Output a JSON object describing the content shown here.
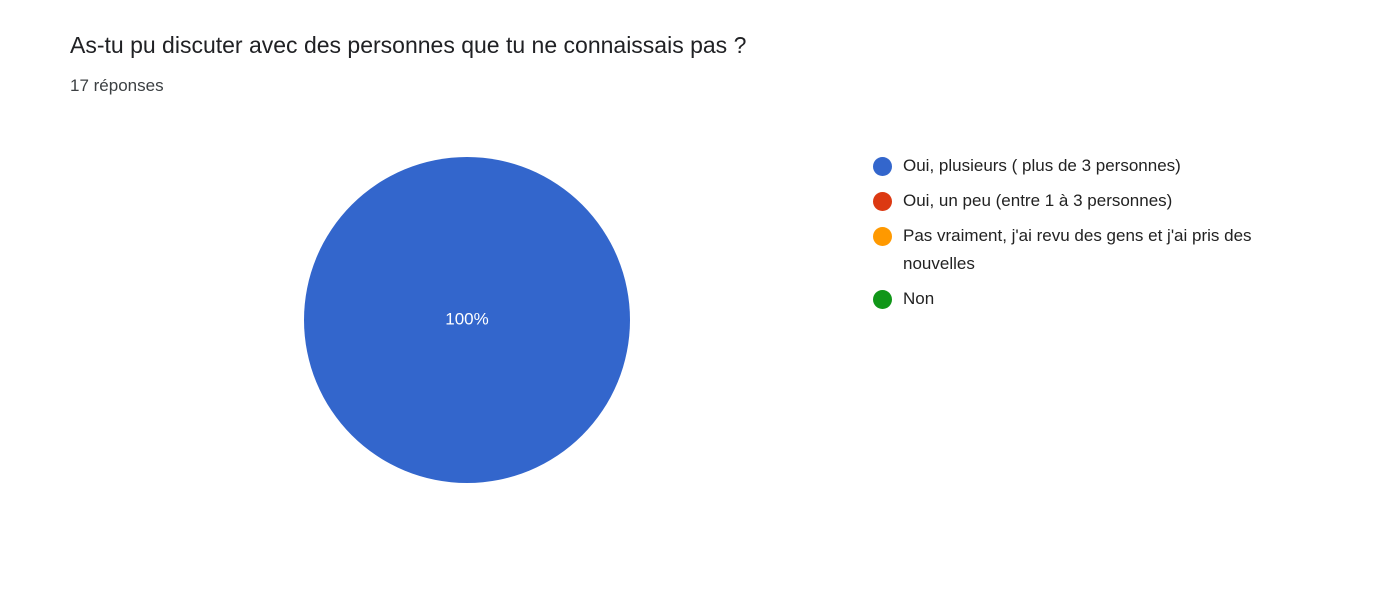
{
  "chart_data": {
    "type": "pie",
    "title": "As-tu pu discuter avec des personnes que tu ne connaissais pas ?",
    "subtitle": "17 réponses",
    "categories": [
      "Oui, plusieurs ( plus de 3 personnes)",
      "Oui, un peu (entre 1 à 3 personnes)",
      "Pas vraiment, j'ai revu des gens et j'ai pris des nouvelles",
      "Non"
    ],
    "values": [
      100,
      0,
      0,
      0
    ],
    "value_labels": [
      "100%",
      null,
      null,
      null
    ],
    "colors": [
      "#3366cc",
      "#dc3912",
      "#ff9900",
      "#109618"
    ],
    "legend": "right"
  }
}
